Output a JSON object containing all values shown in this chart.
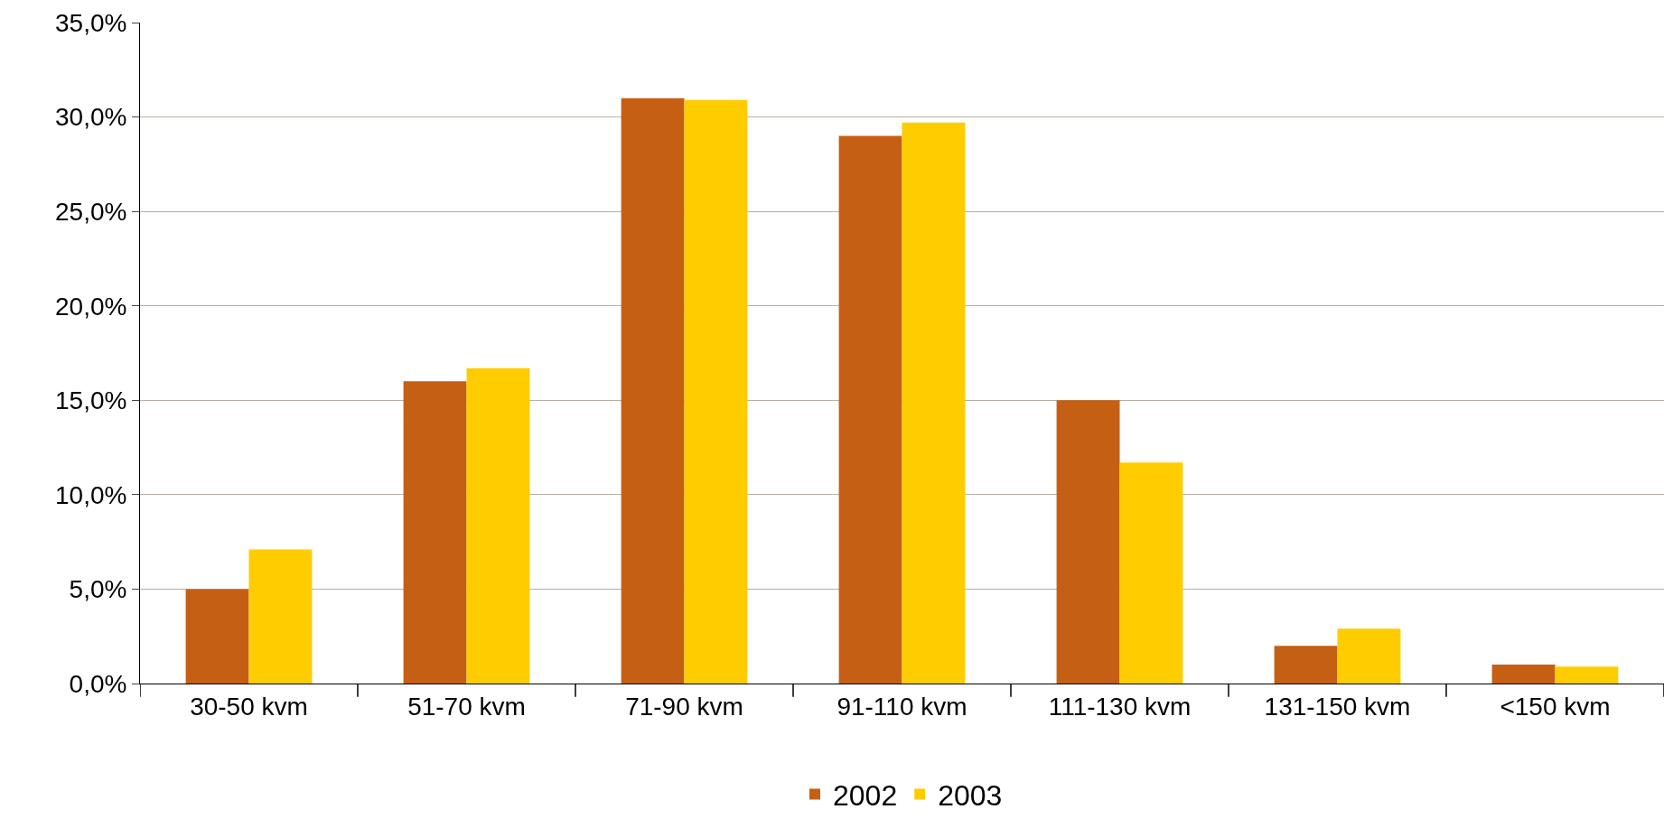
{
  "chart_data": {
    "type": "bar",
    "categories": [
      "30-50 kvm",
      "51-70 kvm",
      "71-90 kvm",
      "91-110 kvm",
      "111-130 kvm",
      "131-150 kvm",
      "<150 kvm"
    ],
    "series": [
      {
        "name": "2002",
        "color": "#c55f14",
        "values": [
          5.0,
          16.0,
          31.0,
          29.0,
          15.0,
          2.0,
          1.0
        ]
      },
      {
        "name": "2003",
        "color": "#ffcc00",
        "values": [
          7.1,
          16.7,
          30.9,
          29.7,
          11.7,
          2.9,
          0.9
        ]
      }
    ],
    "ylim": [
      0,
      35
    ],
    "yticks": [
      {
        "value": 0,
        "label": "0,0%"
      },
      {
        "value": 5,
        "label": "5,0%"
      },
      {
        "value": 10,
        "label": "10,0%"
      },
      {
        "value": 15,
        "label": "15,0%"
      },
      {
        "value": 20,
        "label": "20,0%"
      },
      {
        "value": 25,
        "label": "25,0%"
      },
      {
        "value": 30,
        "label": "30,0%"
      },
      {
        "value": 35,
        "label": "35,0%"
      }
    ],
    "grid": "y",
    "legend": "bottom"
  }
}
